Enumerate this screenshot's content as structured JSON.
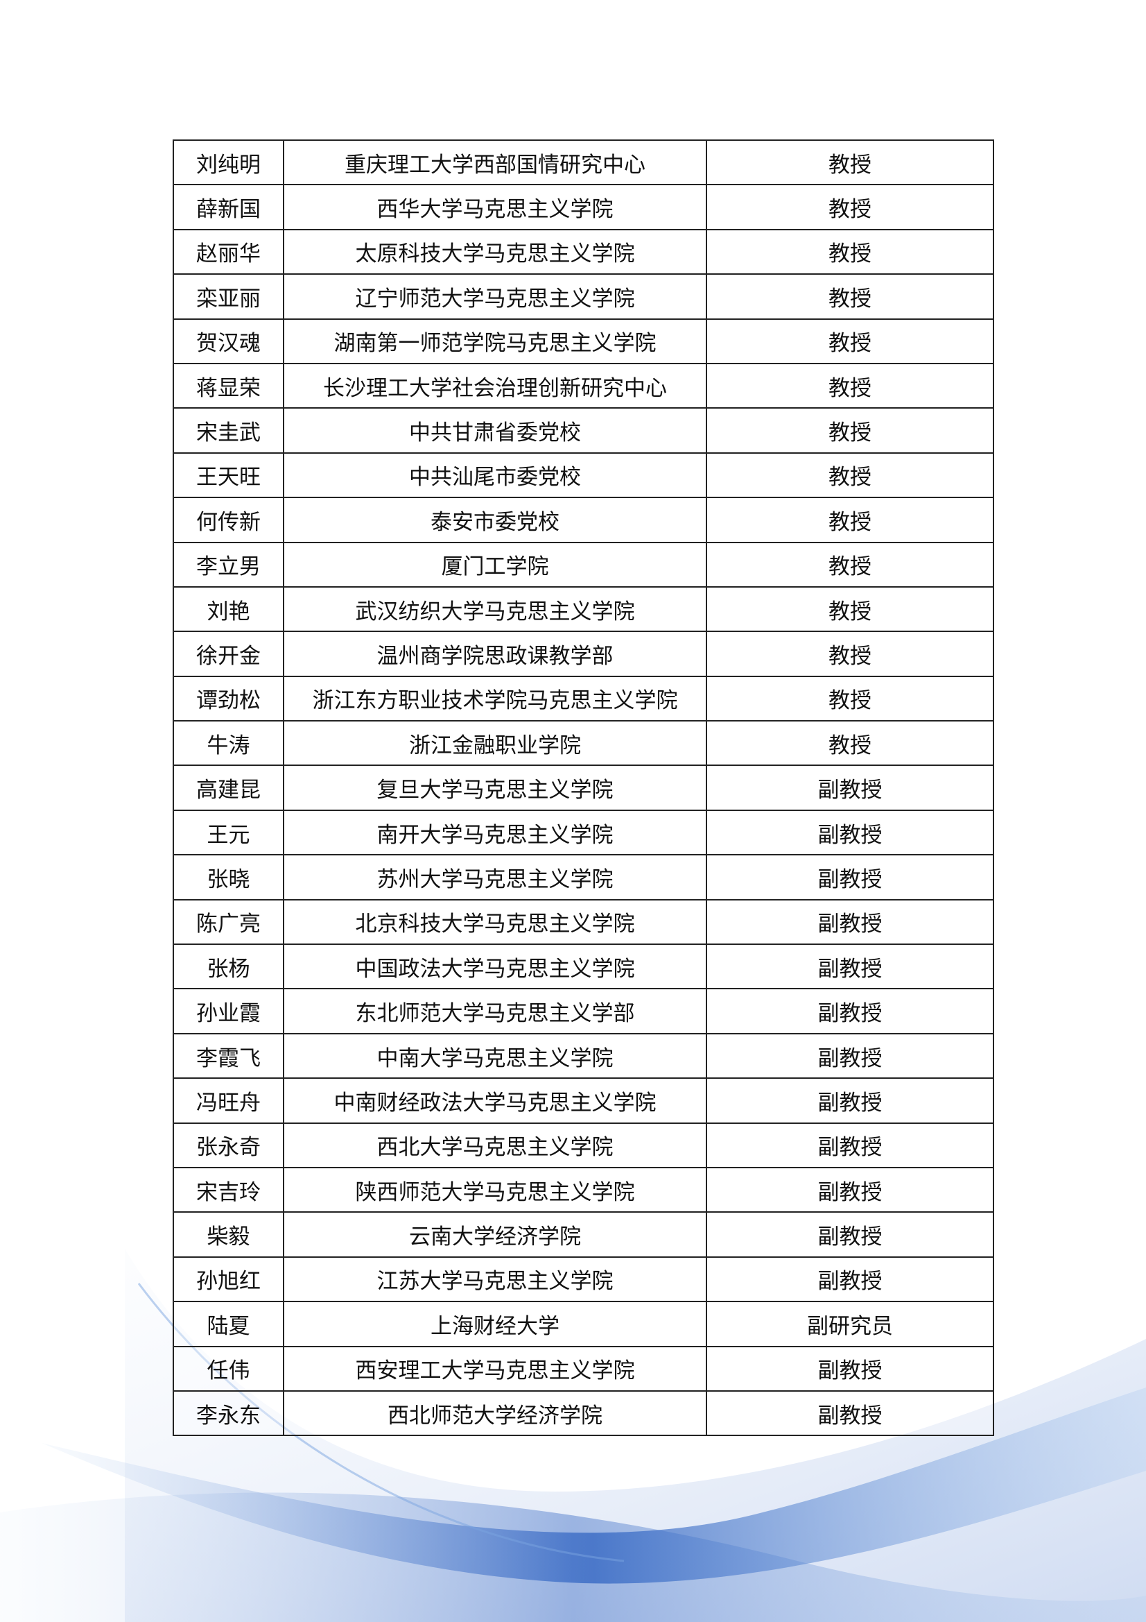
{
  "table": {
    "rows": [
      [
        "刘纯明",
        "重庆理工大学西部国情研究中心",
        "教授"
      ],
      [
        "薛新国",
        "西华大学马克思主义学院",
        "教授"
      ],
      [
        "赵丽华",
        "太原科技大学马克思主义学院",
        "教授"
      ],
      [
        "栾亚丽",
        "辽宁师范大学马克思主义学院",
        "教授"
      ],
      [
        "贺汉魂",
        "湖南第一师范学院马克思主义学院",
        "教授"
      ],
      [
        "蒋显荣",
        "长沙理工大学社会治理创新研究中心",
        "教授"
      ],
      [
        "宋圭武",
        "中共甘肃省委党校",
        "教授"
      ],
      [
        "王天旺",
        "中共汕尾市委党校",
        "教授"
      ],
      [
        "何传新",
        "泰安市委党校",
        "教授"
      ],
      [
        "李立男",
        "厦门工学院",
        "教授"
      ],
      [
        "刘艳",
        "武汉纺织大学马克思主义学院",
        "教授"
      ],
      [
        "徐开金",
        "温州商学院思政课教学部",
        "教授"
      ],
      [
        "谭劲松",
        "浙江东方职业技术学院马克思主义学院",
        "教授"
      ],
      [
        "牛涛",
        "浙江金融职业学院",
        "教授"
      ],
      [
        "高建昆",
        "复旦大学马克思主义学院",
        "副教授"
      ],
      [
        "王元",
        "南开大学马克思主义学院",
        "副教授"
      ],
      [
        "张晓",
        "苏州大学马克思主义学院",
        "副教授"
      ],
      [
        "陈广亮",
        "北京科技大学马克思主义学院",
        "副教授"
      ],
      [
        "张杨",
        "中国政法大学马克思主义学院",
        "副教授"
      ],
      [
        "孙业霞",
        "东北师范大学马克思主义学部",
        "副教授"
      ],
      [
        "李霞飞",
        "中南大学马克思主义学院",
        "副教授"
      ],
      [
        "冯旺舟",
        "中南财经政法大学马克思主义学院",
        "副教授"
      ],
      [
        "张永奇",
        "西北大学马克思主义学院",
        "副教授"
      ],
      [
        "宋吉玲",
        "陕西师范大学马克思主义学院",
        "副教授"
      ],
      [
        "柴毅",
        "云南大学经济学院",
        "副教授"
      ],
      [
        "孙旭红",
        "江苏大学马克思主义学院",
        "副教授"
      ],
      [
        "陆夏",
        "上海财经大学",
        "副研究员"
      ],
      [
        "任伟",
        "西安理工大学马克思主义学院",
        "副教授"
      ],
      [
        "李永东",
        "西北师范大学经济学院",
        "副教授"
      ]
    ]
  }
}
